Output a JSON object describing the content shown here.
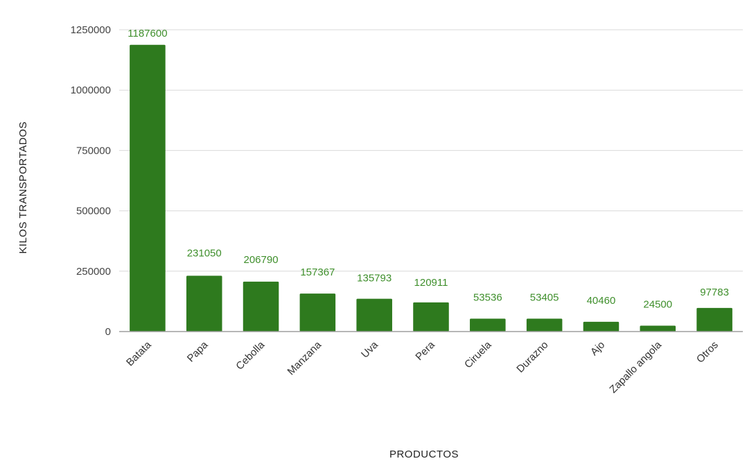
{
  "colors": {
    "bar": "#2e7a1e",
    "data_label": "#3f8f2c",
    "grid": "#d9d9d9",
    "axis": "#9e9e9e"
  },
  "chart_data": {
    "type": "bar",
    "title": "",
    "xlabel": "PRODUCTOS",
    "ylabel": "KILOS TRANSPORTADOS",
    "ylim": [
      0,
      1250000
    ],
    "yticks": [
      0,
      250000,
      500000,
      750000,
      1000000,
      1250000
    ],
    "ytick_labels": [
      "0",
      "250000",
      "500000",
      "750000",
      "1000000",
      "1250000"
    ],
    "grid": true,
    "data_labels": true,
    "categories": [
      "Batata",
      "Papa",
      "Cebolla",
      "Manzana",
      "Uva",
      "Pera",
      "Ciruela",
      "Durazno",
      "Ajo",
      "Zapallo angola",
      "Otros"
    ],
    "values": [
      1187600,
      231050,
      206790,
      157367,
      135793,
      120911,
      53536,
      53405,
      40460,
      24500,
      97783
    ]
  }
}
